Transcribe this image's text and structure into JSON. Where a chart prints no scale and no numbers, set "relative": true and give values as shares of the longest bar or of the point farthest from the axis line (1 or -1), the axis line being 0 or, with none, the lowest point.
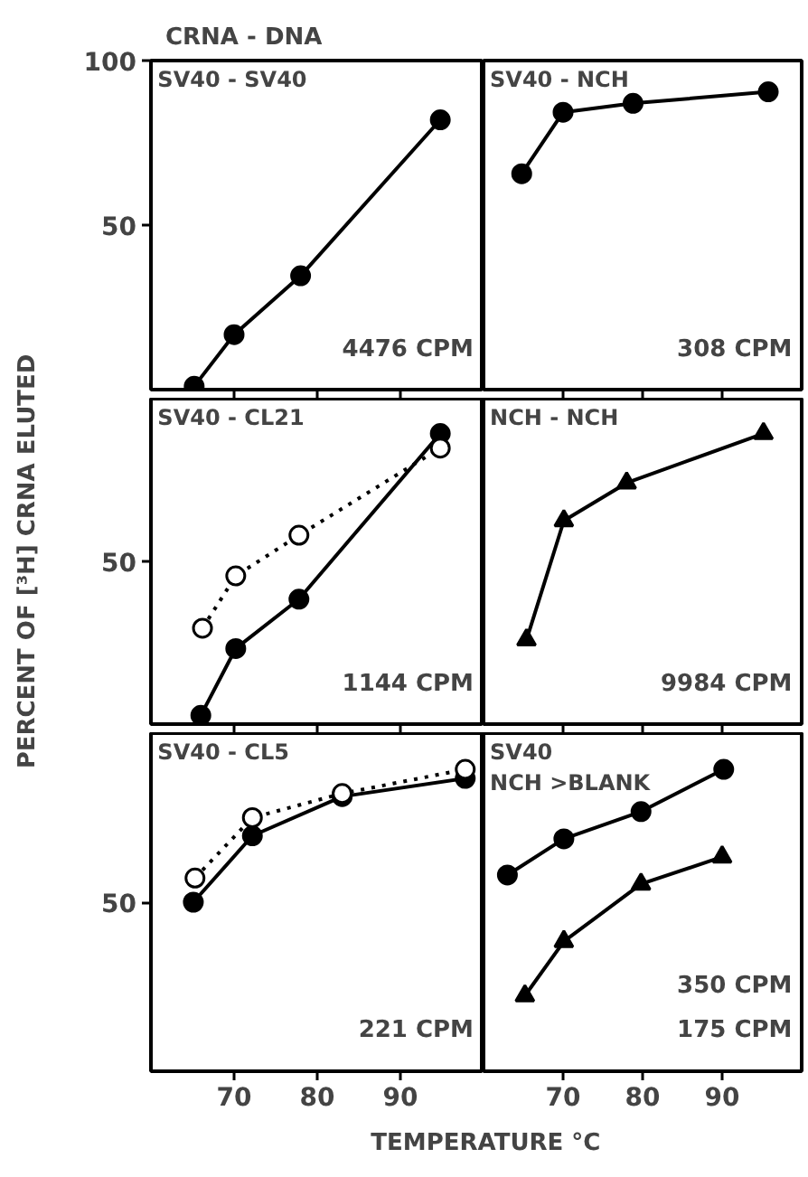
{
  "chart_data": [
    {
      "type": "line",
      "title": "CRNA - DNA",
      "ylabel": "PERCENT OF [³H] CRNA ELUTED",
      "annotations": [
        "SV40 - SV40",
        "4476 CPM"
      ],
      "xlim": [
        60,
        100
      ],
      "xticks": [
        70,
        80,
        90
      ],
      "ylim": [
        0,
        100
      ],
      "yticks": [
        50,
        100
      ],
      "tick_labels": "y",
      "series": [
        {
          "color": "#000000",
          "marker": "circle",
          "line_style": "solid",
          "x": [
            65.2,
            70,
            78,
            94.8
          ],
          "values": [
            1,
            16.7,
            34.6,
            82
          ]
        }
      ]
    },
    {
      "type": "line",
      "annotations": [
        "SV40 - NCH",
        "308 CPM"
      ],
      "xlim": [
        60,
        100
      ],
      "xticks": [
        70,
        80,
        90
      ],
      "ylim": [
        0,
        100
      ],
      "tick_labels": false,
      "series": [
        {
          "color": "#000000",
          "marker": "circle",
          "line_style": "solid",
          "x": [
            64.8,
            70,
            78.8,
            95.8
          ],
          "values": [
            65.6,
            84.3,
            87,
            90.5
          ]
        }
      ]
    },
    {
      "type": "line",
      "relative": true,
      "annotations": [
        "SV40 - CL21",
        "50",
        "1144 CPM"
      ],
      "xlim": [
        60,
        100
      ],
      "xticks": [
        70,
        80,
        90
      ],
      "tick_labels": false,
      "series": [
        {
          "color": "#000000",
          "marker": "circle",
          "line_style": "solid",
          "x": [
            66,
            70.2,
            77.8,
            94.8
          ],
          "values": [
            0.03,
            0.26,
            0.43,
            1
          ]
        },
        {
          "color": "#000000",
          "marker": "circle",
          "line_style": "dotted",
          "x": [
            66.2,
            70.2,
            77.8,
            94.8
          ],
          "values": [
            0.33,
            0.51,
            0.65,
            0.95
          ]
        }
      ]
    },
    {
      "type": "line",
      "relative": true,
      "annotations": [
        "NCH - NCH",
        "9984 CPM"
      ],
      "xlim": [
        60,
        100
      ],
      "xticks": [
        70,
        80,
        90
      ],
      "tick_labels": false,
      "series": [
        {
          "color": "#000000",
          "marker": "triangle",
          "line_style": "solid",
          "x": [
            65.4,
            70.1,
            78,
            95.2
          ],
          "values": [
            0.29,
            0.7,
            0.83,
            1
          ]
        }
      ]
    },
    {
      "type": "line",
      "relative": true,
      "xlabel": "TEMPERATURE °C",
      "annotations": [
        "SV40 - CL5",
        "50",
        "221 CPM"
      ],
      "xlim": [
        60,
        100
      ],
      "xticks": [
        70,
        80,
        90
      ],
      "tick_labels": "x",
      "series": [
        {
          "color": "#000000",
          "marker": "circle",
          "line_style": "solid",
          "x": [
            65.1,
            72.2,
            83,
            97.8
          ],
          "values": [
            0.56,
            0.78,
            0.91,
            0.97
          ]
        },
        {
          "color": "#000000",
          "marker": "circle",
          "line_style": "dotted",
          "x": [
            65.3,
            72.2,
            83,
            97.8
          ],
          "values": [
            0.64,
            0.84,
            0.92,
            1
          ]
        }
      ]
    },
    {
      "type": "line",
      "relative": true,
      "annotations": [
        "SV40\nNCH >BLANK",
        "350 CPM",
        "175 CPM"
      ],
      "xlim": [
        60,
        100
      ],
      "xticks": [
        70,
        80,
        90
      ],
      "tick_labels": "x",
      "series": [
        {
          "color": "#000000",
          "marker": "circle",
          "line_style": "solid",
          "x": [
            63,
            70.1,
            79.8,
            90.2
          ],
          "values": [
            0.65,
            0.77,
            0.86,
            1
          ]
        },
        {
          "color": "#000000",
          "marker": "triangle",
          "line_style": "solid",
          "x": [
            65.2,
            70.1,
            79.8,
            90
          ],
          "values": [
            0.25,
            0.43,
            0.62,
            0.71
          ]
        }
      ]
    }
  ]
}
